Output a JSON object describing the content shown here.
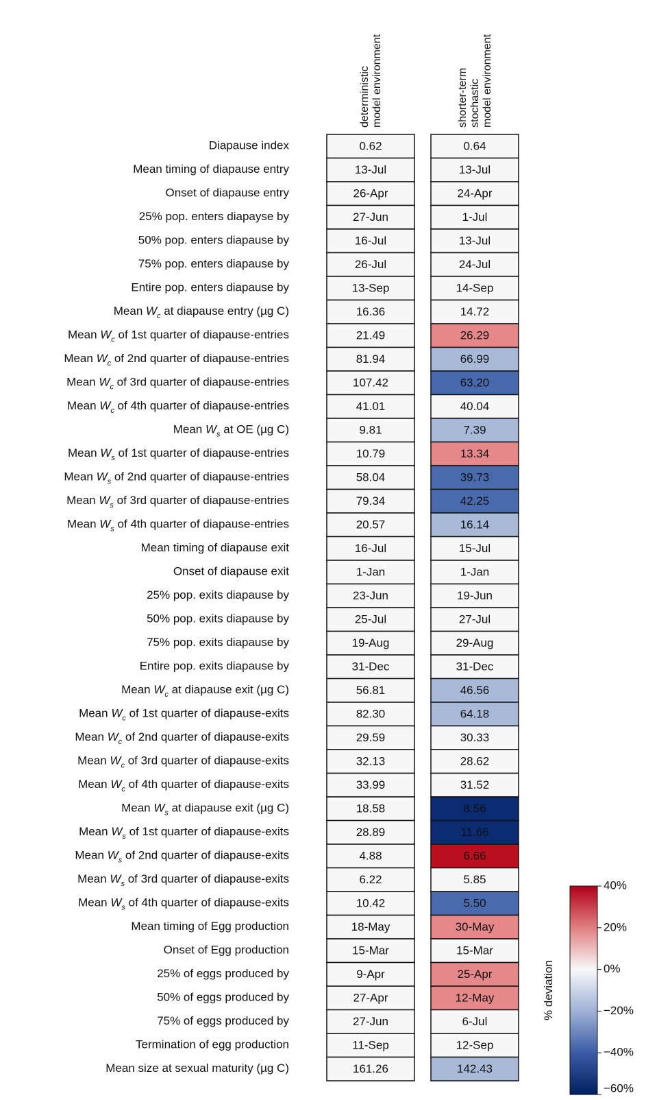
{
  "columns": [
    {
      "lines": [
        "deterministic",
        "model environment"
      ]
    },
    {
      "lines": [
        "shorter-term",
        "stochastic",
        "model environment"
      ]
    }
  ],
  "rows": [
    {
      "label": [
        "Diapause index"
      ],
      "cells": [
        "0.62",
        "0.64"
      ]
    },
    {
      "label": [
        "Mean timing of diapause entry"
      ],
      "cells": [
        "13-Jul",
        "13-Jul"
      ]
    },
    {
      "label": [
        "Onset of diapause entry"
      ],
      "cells": [
        "26-Apr",
        "24-Apr"
      ]
    },
    {
      "label": [
        "25% pop. enters diapayse by"
      ],
      "cells": [
        "27-Jun",
        "1-Jul"
      ]
    },
    {
      "label": [
        "50% pop. enters diapause by"
      ],
      "cells": [
        "16-Jul",
        "13-Jul"
      ]
    },
    {
      "label": [
        "75% pop. enters diapause by"
      ],
      "cells": [
        "26-Jul",
        "24-Jul"
      ]
    },
    {
      "label": [
        "Entire pop. enters diapause by"
      ],
      "cells": [
        "13-Sep",
        "14-Sep"
      ]
    },
    {
      "label": [
        "Mean ",
        "W",
        "c",
        " at diapause entry (µg C)"
      ],
      "cells": [
        "16.36",
        "14.72"
      ]
    },
    {
      "label": [
        "Mean ",
        "W",
        "c",
        " of 1st quarter of diapause-entries"
      ],
      "cells": [
        "21.49",
        "26.29"
      ],
      "color": "#e68889"
    },
    {
      "label": [
        "Mean ",
        "W",
        "c",
        " of 2nd quarter of diapause-entries"
      ],
      "cells": [
        "81.94",
        "66.99"
      ],
      "color": "#a9b9d8"
    },
    {
      "label": [
        "Mean ",
        "W",
        "c",
        " of 3rd quarter of diapause-entries"
      ],
      "cells": [
        "107.42",
        "63.20"
      ],
      "color": "#4869ad"
    },
    {
      "label": [
        "Mean ",
        "W",
        "c",
        " of 4th quarter of diapause-entries"
      ],
      "cells": [
        "41.01",
        "40.04"
      ]
    },
    {
      "label": [
        "Mean ",
        "W",
        "s",
        " at OE (µg C)"
      ],
      "cells": [
        "9.81",
        "7.39"
      ],
      "color": "#a9b9d8"
    },
    {
      "label": [
        "Mean ",
        "W",
        "s",
        " of 1st quarter of diapause-entries"
      ],
      "cells": [
        "10.79",
        "13.34"
      ],
      "color": "#e68889"
    },
    {
      "label": [
        "Mean ",
        "W",
        "s",
        " of 2nd quarter of diapause-entries"
      ],
      "cells": [
        "58.04",
        "39.73"
      ],
      "color": "#4a6aae"
    },
    {
      "label": [
        "Mean ",
        "W",
        "s",
        " of 3rd quarter of diapause-entries"
      ],
      "cells": [
        "79.34",
        "42.25"
      ],
      "color": "#4a6aae"
    },
    {
      "label": [
        "Mean ",
        "W",
        "s",
        " of 4th quarter of diapause-entries"
      ],
      "cells": [
        "20.57",
        "16.14"
      ],
      "color": "#a9b9d8"
    },
    {
      "label": [
        "Mean timing of diapause exit"
      ],
      "cells": [
        "16-Jul",
        "15-Jul"
      ]
    },
    {
      "label": [
        "Onset of diapause exit"
      ],
      "cells": [
        "1-Jan",
        "1-Jan"
      ]
    },
    {
      "label": [
        "25% pop. exits diapause by"
      ],
      "cells": [
        "23-Jun",
        "19-Jun"
      ]
    },
    {
      "label": [
        "50% pop. exits diapause by"
      ],
      "cells": [
        "25-Jul",
        "27-Jul"
      ]
    },
    {
      "label": [
        "75% pop. exits diapause by"
      ],
      "cells": [
        "19-Aug",
        "29-Aug"
      ]
    },
    {
      "label": [
        "Entire pop. exits diapause by"
      ],
      "cells": [
        "31-Dec",
        "31-Dec"
      ]
    },
    {
      "label": [
        "Mean ",
        "W",
        "c",
        " at diapause exit (µg C)"
      ],
      "cells": [
        "56.81",
        "46.56"
      ],
      "color": "#a9b9d8"
    },
    {
      "label": [
        "Mean ",
        "W",
        "c",
        " of 1st quarter of diapause-exits"
      ],
      "cells": [
        "82.30",
        "64.18"
      ],
      "color": "#a9b9d8"
    },
    {
      "label": [
        "Mean ",
        "W",
        "c",
        " of 2nd quarter of diapause-exits"
      ],
      "cells": [
        "29.59",
        "30.33"
      ]
    },
    {
      "label": [
        "Mean ",
        "W",
        "c",
        " of 3rd quarter of diapause-exits"
      ],
      "cells": [
        "32.13",
        "28.62"
      ]
    },
    {
      "label": [
        "Mean ",
        "W",
        "c",
        " of 4th quarter of diapause-exits"
      ],
      "cells": [
        "33.99",
        "31.52"
      ]
    },
    {
      "label": [
        "Mean ",
        "W",
        "s",
        " at diapause exit (µg C)"
      ],
      "cells": [
        "18.58",
        "8.56"
      ],
      "color": "#0b2c72"
    },
    {
      "label": [
        "Mean ",
        "W",
        "s",
        " of 1st quarter of diapause-exits"
      ],
      "cells": [
        "28.89",
        "11.66"
      ],
      "color": "#0b2c72"
    },
    {
      "label": [
        "Mean ",
        "W",
        "s",
        " of 2nd quarter of diapause-exits"
      ],
      "cells": [
        "4.88",
        "6.66"
      ],
      "color": "#bb0e1e"
    },
    {
      "label": [
        "Mean ",
        "W",
        "s",
        " of 3rd quarter of diapause-exits"
      ],
      "cells": [
        "6.22",
        "5.85"
      ]
    },
    {
      "label": [
        "Mean ",
        "W",
        "s",
        " of 4th quarter of diapause-exits"
      ],
      "cells": [
        "10.42",
        "5.50"
      ],
      "color": "#4a6aae"
    },
    {
      "label": [
        "Mean timing of Egg production"
      ],
      "cells": [
        "18-May",
        "30-May"
      ],
      "color": "#e68889"
    },
    {
      "label": [
        "Onset of Egg production"
      ],
      "cells": [
        "15-Mar",
        "15-Mar"
      ]
    },
    {
      "label": [
        "25% of eggs produced by"
      ],
      "cells": [
        "9-Apr",
        "25-Apr"
      ],
      "color": "#e68889"
    },
    {
      "label": [
        "50% of eggs produced by"
      ],
      "cells": [
        "27-Apr",
        "12-May"
      ],
      "color": "#e68889"
    },
    {
      "label": [
        "75% of eggs produced by"
      ],
      "cells": [
        "27-Jun",
        "6-Jul"
      ]
    },
    {
      "label": [
        "Termination of egg production"
      ],
      "cells": [
        "11-Sep",
        "12-Sep"
      ]
    },
    {
      "label": [
        "Mean size at sexual maturity (µg C)"
      ],
      "cells": [
        "161.26",
        "142.43"
      ],
      "color": "#a9b9d8"
    }
  ],
  "colorbar": {
    "label": "% deviation",
    "lim": [
      -60,
      40
    ],
    "ticks": [
      {
        "value": 40,
        "label": "40%"
      },
      {
        "value": 20,
        "label": "20%"
      },
      {
        "value": 0,
        "label": "0%"
      },
      {
        "value": -20,
        "label": "−20%"
      },
      {
        "value": -40,
        "label": "−40%"
      },
      {
        "value": -60,
        "label": "−60%"
      }
    ]
  }
}
